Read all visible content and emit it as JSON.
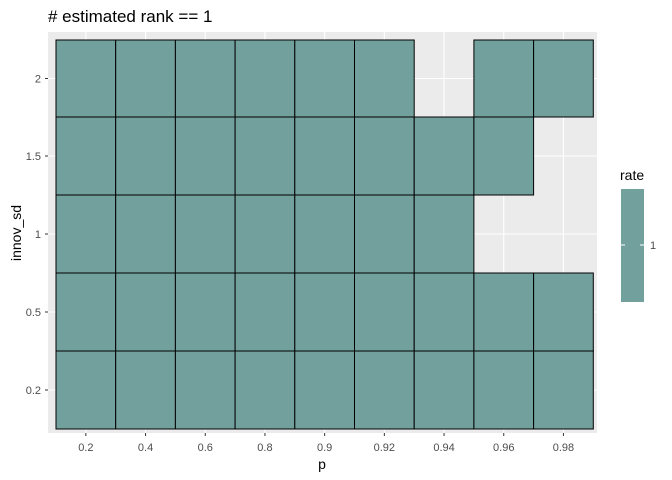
{
  "chart_data": {
    "type": "heatmap",
    "title": "# estimated rank == 1",
    "xlabel": "p",
    "ylabel": "innov_sd",
    "x_categories": [
      "0.2",
      "0.4",
      "0.6",
      "0.8",
      "0.9",
      "0.92",
      "0.94",
      "0.96",
      "0.98"
    ],
    "y_categories": [
      "0.2",
      "0.5",
      "1",
      "1.5",
      "2"
    ],
    "cells": [
      {
        "x": "0.2",
        "y": "0.2",
        "rate": 1
      },
      {
        "x": "0.4",
        "y": "0.2",
        "rate": 1
      },
      {
        "x": "0.6",
        "y": "0.2",
        "rate": 1
      },
      {
        "x": "0.8",
        "y": "0.2",
        "rate": 1
      },
      {
        "x": "0.9",
        "y": "0.2",
        "rate": 1
      },
      {
        "x": "0.92",
        "y": "0.2",
        "rate": 1
      },
      {
        "x": "0.94",
        "y": "0.2",
        "rate": 1
      },
      {
        "x": "0.96",
        "y": "0.2",
        "rate": 1
      },
      {
        "x": "0.98",
        "y": "0.2",
        "rate": 1
      },
      {
        "x": "0.2",
        "y": "0.5",
        "rate": 1
      },
      {
        "x": "0.4",
        "y": "0.5",
        "rate": 1
      },
      {
        "x": "0.6",
        "y": "0.5",
        "rate": 1
      },
      {
        "x": "0.8",
        "y": "0.5",
        "rate": 1
      },
      {
        "x": "0.9",
        "y": "0.5",
        "rate": 1
      },
      {
        "x": "0.92",
        "y": "0.5",
        "rate": 1
      },
      {
        "x": "0.94",
        "y": "0.5",
        "rate": 1
      },
      {
        "x": "0.96",
        "y": "0.5",
        "rate": 1
      },
      {
        "x": "0.98",
        "y": "0.5",
        "rate": 1
      },
      {
        "x": "0.2",
        "y": "1",
        "rate": 1
      },
      {
        "x": "0.4",
        "y": "1",
        "rate": 1
      },
      {
        "x": "0.6",
        "y": "1",
        "rate": 1
      },
      {
        "x": "0.8",
        "y": "1",
        "rate": 1
      },
      {
        "x": "0.9",
        "y": "1",
        "rate": 1
      },
      {
        "x": "0.92",
        "y": "1",
        "rate": 1
      },
      {
        "x": "0.94",
        "y": "1",
        "rate": 1
      },
      {
        "x": "0.2",
        "y": "1.5",
        "rate": 1
      },
      {
        "x": "0.4",
        "y": "1.5",
        "rate": 1
      },
      {
        "x": "0.6",
        "y": "1.5",
        "rate": 1
      },
      {
        "x": "0.8",
        "y": "1.5",
        "rate": 1
      },
      {
        "x": "0.9",
        "y": "1.5",
        "rate": 1
      },
      {
        "x": "0.92",
        "y": "1.5",
        "rate": 1
      },
      {
        "x": "0.94",
        "y": "1.5",
        "rate": 1
      },
      {
        "x": "0.96",
        "y": "1.5",
        "rate": 1
      },
      {
        "x": "0.2",
        "y": "2",
        "rate": 1
      },
      {
        "x": "0.4",
        "y": "2",
        "rate": 1
      },
      {
        "x": "0.6",
        "y": "2",
        "rate": 1
      },
      {
        "x": "0.8",
        "y": "2",
        "rate": 1
      },
      {
        "x": "0.9",
        "y": "2",
        "rate": 1
      },
      {
        "x": "0.92",
        "y": "2",
        "rate": 1
      },
      {
        "x": "0.96",
        "y": "2",
        "rate": 1
      },
      {
        "x": "0.98",
        "y": "2",
        "rate": 1
      }
    ],
    "legend": {
      "title": "rate",
      "labels": [
        "1"
      ],
      "position": "right"
    },
    "grid": true,
    "colors": {
      "fill": "#72a09d",
      "panel": "#ebebeb",
      "gridline": "#ffffff",
      "tile_border": "#000000"
    }
  }
}
